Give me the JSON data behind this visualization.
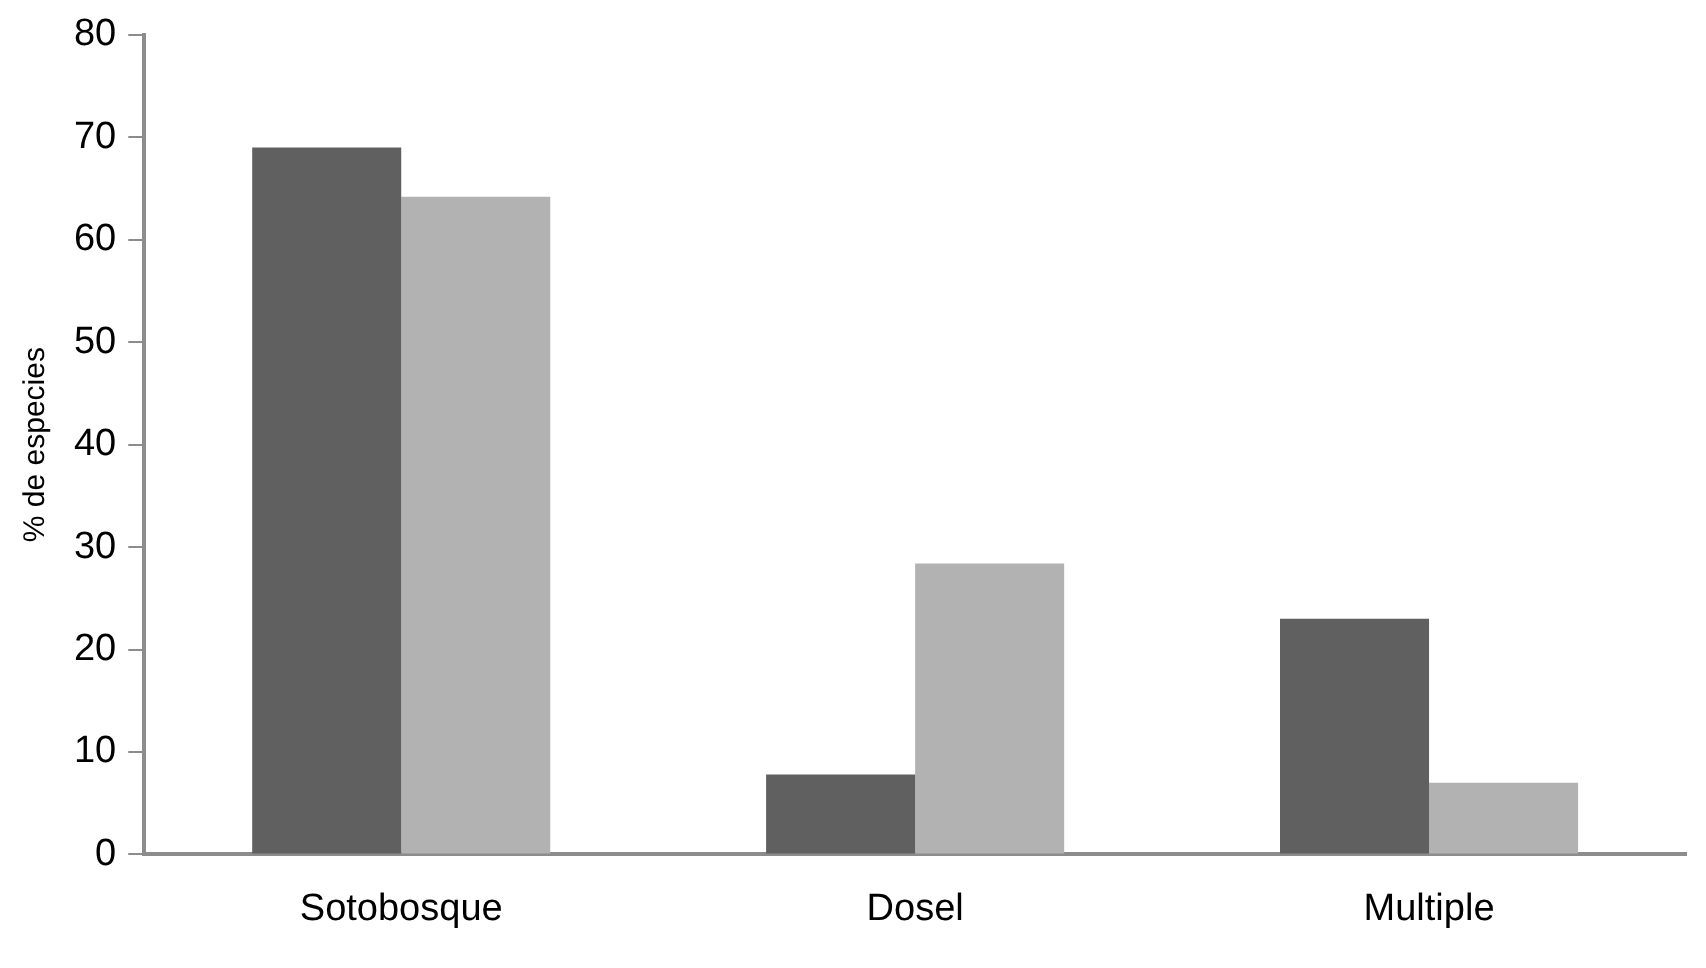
{
  "chart_data": {
    "type": "bar",
    "ylabel": "% de especies",
    "categories": [
      "Sotobosque",
      "Dosel",
      "Multiple"
    ],
    "series": [
      {
        "color": "#606060",
        "values": [
          69,
          7.8,
          23
        ]
      },
      {
        "color": "#b2b2b2",
        "values": [
          64.2,
          28.4,
          7
        ]
      }
    ],
    "ylim": [
      0,
      80
    ],
    "yticks": [
      0,
      10,
      20,
      30,
      40,
      50,
      60,
      70,
      80
    ],
    "grid": false,
    "legend": false
  }
}
